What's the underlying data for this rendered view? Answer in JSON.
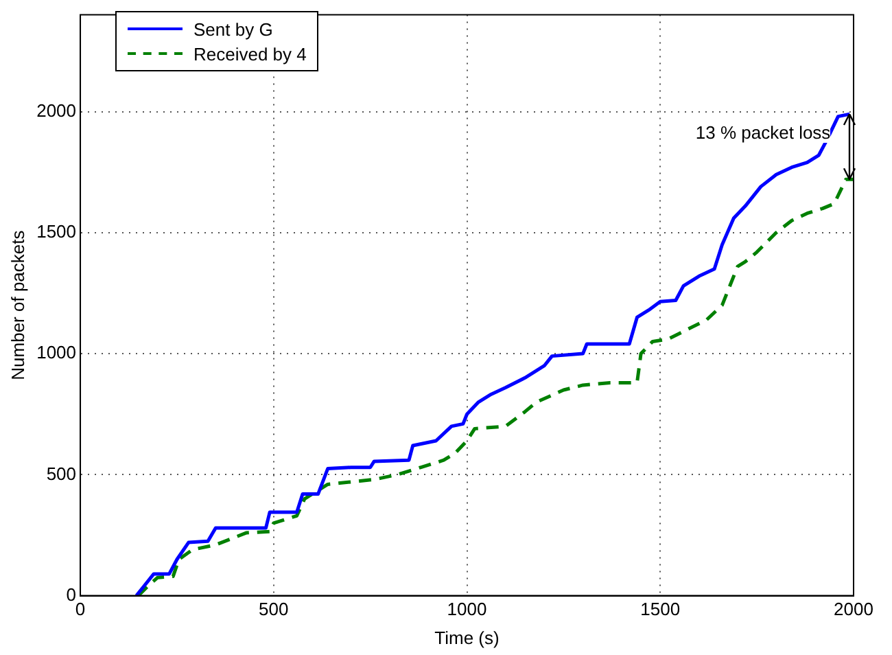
{
  "chart_data": {
    "type": "line",
    "xlabel": "Time (s)",
    "ylabel": "Number of packets",
    "xlim": [
      0,
      2000
    ],
    "xticks": [
      0,
      500,
      1000,
      1500,
      2000
    ],
    "ylim": [
      0,
      2400
    ],
    "yticks": [
      0,
      500,
      1000,
      1500,
      2000
    ],
    "grid": true,
    "legend": "top left",
    "marker": "none",
    "series": [
      {
        "name": "Sent by G",
        "color": "#0000ff",
        "line_style": "solid",
        "x": [
          145,
          165,
          190,
          230,
          250,
          280,
          330,
          350,
          480,
          490,
          560,
          575,
          615,
          640,
          700,
          750,
          760,
          850,
          860,
          920,
          960,
          990,
          1000,
          1030,
          1060,
          1100,
          1150,
          1200,
          1220,
          1300,
          1310,
          1420,
          1440,
          1470,
          1500,
          1540,
          1560,
          1600,
          1640,
          1660,
          1690,
          1720,
          1760,
          1800,
          1840,
          1880,
          1910,
          1930,
          1960,
          1990
        ],
        "values": [
          0,
          40,
          90,
          90,
          150,
          220,
          225,
          280,
          280,
          345,
          345,
          420,
          420,
          525,
          530,
          530,
          555,
          560,
          620,
          640,
          700,
          710,
          750,
          800,
          830,
          860,
          900,
          950,
          990,
          1000,
          1040,
          1040,
          1150,
          1180,
          1215,
          1220,
          1280,
          1320,
          1350,
          1450,
          1560,
          1610,
          1690,
          1740,
          1770,
          1790,
          1820,
          1880,
          1980,
          1990
        ]
      },
      {
        "name": "Received by 4",
        "color": "#008000",
        "line_style": "dashed",
        "x": [
          150,
          175,
          200,
          240,
          255,
          290,
          350,
          430,
          490,
          500,
          560,
          580,
          640,
          760,
          820,
          880,
          940,
          970,
          1000,
          1020,
          1100,
          1150,
          1180,
          1250,
          1300,
          1370,
          1440,
          1450,
          1480,
          1520,
          1570,
          1620,
          1660,
          1700,
          1720,
          1750,
          1800,
          1840,
          1880,
          1920,
          1950,
          1980,
          2000
        ],
        "values": [
          0,
          40,
          75,
          80,
          150,
          190,
          210,
          260,
          265,
          300,
          330,
          400,
          460,
          480,
          500,
          530,
          560,
          590,
          640,
          690,
          700,
          760,
          800,
          850,
          870,
          880,
          880,
          1000,
          1050,
          1060,
          1100,
          1140,
          1200,
          1360,
          1380,
          1420,
          1500,
          1550,
          1580,
          1600,
          1620,
          1720,
          1720
        ]
      }
    ],
    "annotations": [
      {
        "text": "13 % packet loss",
        "x": 1990,
        "y": 1990
      }
    ]
  }
}
